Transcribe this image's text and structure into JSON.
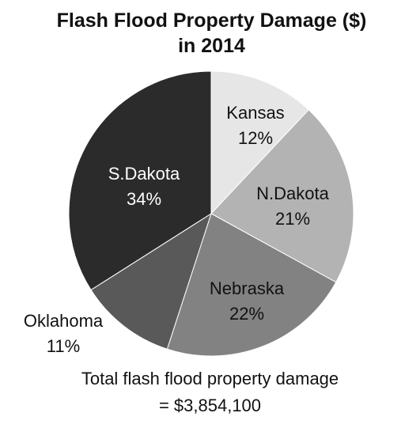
{
  "chart_data": {
    "type": "pie",
    "title": "Flash Flood Property Damage ($) in 2014",
    "categories": [
      "Kansas",
      "N.Dakota",
      "Nebraska",
      "Oklahoma",
      "S.Dakota"
    ],
    "values": [
      12,
      21,
      22,
      11,
      34
    ],
    "value_labels": [
      "12%",
      "21%",
      "22%",
      "11%",
      "34%"
    ],
    "colors": [
      "#e6e6e6",
      "#b3b3b3",
      "#828282",
      "#595959",
      "#2b2b2b"
    ],
    "annotation": [
      "Total flash flood property damage",
      "= $3,854,100"
    ]
  }
}
